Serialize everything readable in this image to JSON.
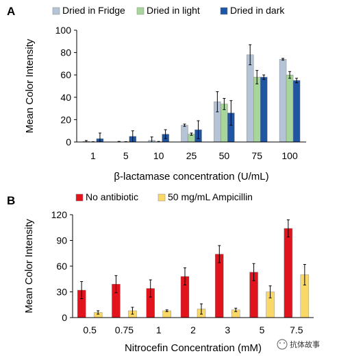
{
  "chart_data": [
    {
      "type": "bar",
      "panel_label": "A",
      "categories": [
        "1",
        "5",
        "10",
        "25",
        "50",
        "75",
        "100"
      ],
      "xlabel": "β-lactamase concentration (U/mL)",
      "ylabel": "Mean Color Intensity",
      "ylim": [
        0,
        100
      ],
      "yticks": [
        0,
        20,
        40,
        60,
        80,
        100
      ],
      "legend_position": "top",
      "series": [
        {
          "name": "Dried in Fridge",
          "color": "#b4c3d6",
          "values": [
            0.5,
            0,
            1.5,
            15,
            36,
            78,
            74
          ],
          "errors": [
            0.8,
            0.5,
            3,
            1,
            9,
            9,
            0.8
          ]
        },
        {
          "name": "Dried in light",
          "color": "#a7d69a",
          "values": [
            0,
            0,
            0,
            7,
            34,
            58,
            60
          ],
          "errors": [
            0.3,
            0.3,
            0.5,
            1,
            5,
            6,
            3
          ]
        },
        {
          "name": "Dried in dark",
          "color": "#1f56a3",
          "values": [
            3,
            5,
            7,
            11,
            26,
            58,
            55
          ],
          "errors": [
            5,
            5,
            4,
            8,
            11,
            2,
            2
          ]
        }
      ]
    },
    {
      "type": "bar",
      "panel_label": "B",
      "categories": [
        "0.5",
        "0.75",
        "1",
        "2",
        "3",
        "5",
        "7.5"
      ],
      "xlabel": "Nitrocefin Concentration (mM)",
      "ylabel": "Mean Color Intensity",
      "ylim": [
        0,
        120
      ],
      "yticks": [
        0,
        30,
        60,
        90,
        120
      ],
      "legend_position": "top",
      "series": [
        {
          "name": "No antibiotic",
          "color": "#e1141d",
          "values": [
            32,
            39,
            34,
            48,
            74,
            53,
            104
          ],
          "errors": [
            10,
            10,
            10,
            10,
            10,
            10,
            10
          ]
        },
        {
          "name": "50 mg/mL Ampicillin",
          "color": "#f9d868",
          "values": [
            6,
            8,
            8,
            10,
            9,
            30,
            50
          ],
          "errors": [
            2,
            4,
            1,
            6,
            2,
            7,
            12
          ]
        }
      ]
    }
  ],
  "watermark": "抗体故事"
}
